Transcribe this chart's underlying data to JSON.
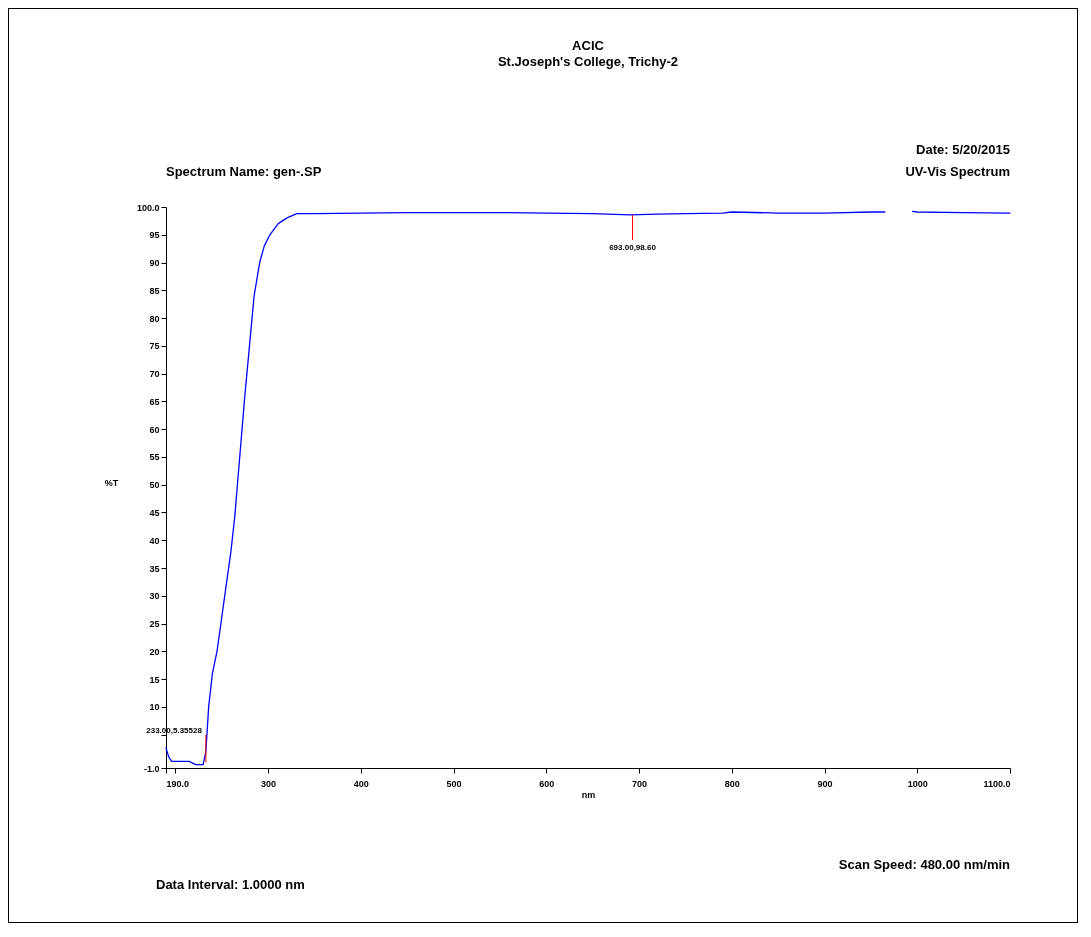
{
  "chart_data": {
    "type": "line",
    "title": "ACIC",
    "subtitle": "St.Joseph's College, Trichy-2",
    "xlabel": "nm",
    "ylabel": "%T",
    "x": [
      190,
      193,
      196,
      205,
      215,
      222,
      230,
      233,
      236,
      240,
      245,
      250,
      255,
      260,
      264,
      267,
      271,
      275,
      280,
      285,
      291,
      296,
      302,
      311,
      320,
      331,
      350,
      400,
      450,
      500,
      550,
      600,
      650,
      690,
      720,
      750,
      790,
      800,
      850,
      900,
      950,
      965,
      980,
      995,
      1000,
      1050,
      1100
    ],
    "series": [
      {
        "color": "#0000ff",
        "values": [
          2.6,
          1,
          0.2,
          0.2,
          0.2,
          -0.4,
          -0.4,
          2,
          10,
          16,
          20,
          26,
          32,
          38,
          44,
          50,
          58,
          66,
          75,
          84,
          90,
          93,
          95,
          97,
          98,
          98.8,
          98.8,
          98.9,
          99,
          99,
          99,
          98.9,
          98.8,
          98.6,
          98.7,
          98.8,
          98.9,
          99.1,
          98.9,
          98.9,
          99.1,
          99.1,
          null,
          99.2,
          99.1,
          99,
          98.9
        ]
      }
    ],
    "xlim": [
      190,
      1100
    ],
    "xticks": [
      {
        "value": 190,
        "label": "190.0"
      },
      {
        "value": 200,
        "label": null
      },
      300,
      400,
      500,
      600,
      700,
      800,
      900,
      1000,
      {
        "value": 1100,
        "label": "1100.0"
      }
    ],
    "ylim": [
      -1,
      100
    ],
    "yticks": [
      {
        "value": -1,
        "label": "-1.0"
      },
      {
        "value": 5,
        "label": null
      },
      10,
      15,
      20,
      25,
      30,
      35,
      40,
      45,
      50,
      55,
      60,
      65,
      70,
      75,
      80,
      85,
      90,
      95,
      {
        "value": 100,
        "label": "100.0"
      }
    ],
    "grid": false,
    "annotations": [
      {
        "text": "233.00,5.35528",
        "x": 233,
        "y": 5
      },
      {
        "text": "693.00,98.60",
        "x": 693,
        "y": 98.6
      },
      "Spectrum Name: gen-.SP",
      "Date: 5/20/2015",
      "UV-Vis Spectrum",
      "Data Interval: 1.0000 nm",
      "Scan Speed: 480.00 nm/min"
    ]
  }
}
